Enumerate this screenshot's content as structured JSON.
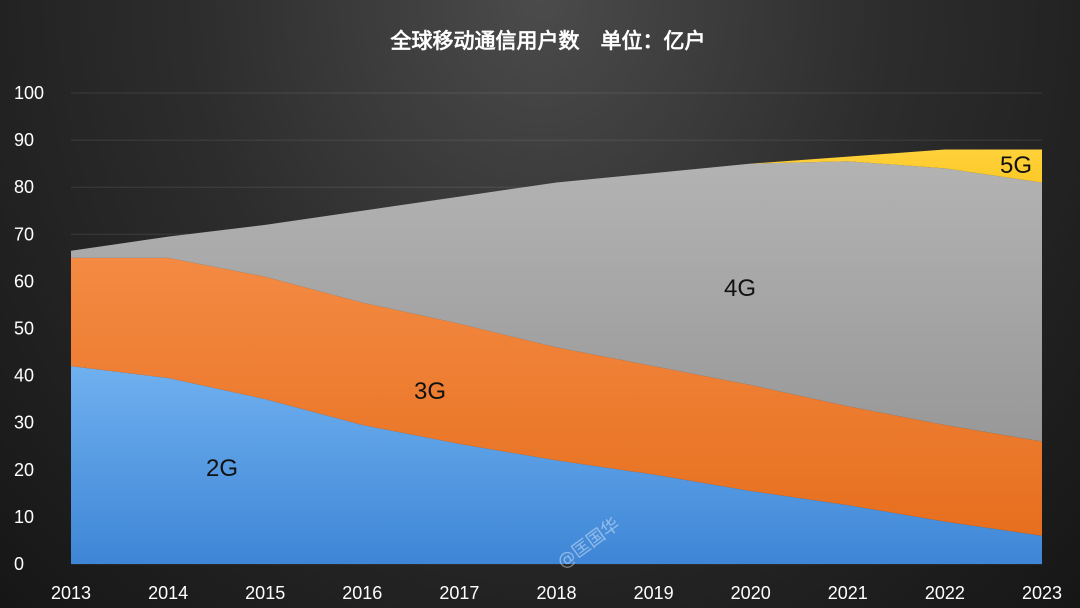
{
  "chart_data": {
    "type": "area",
    "stacked": true,
    "title": "全球移动通信用户数　单位：亿户",
    "xlabel": "",
    "ylabel": "",
    "categories": [
      "2013",
      "2014",
      "2015",
      "2016",
      "2017",
      "2018",
      "2019",
      "2020",
      "2021",
      "2022",
      "2023"
    ],
    "y_ticks": [
      "0",
      "10",
      "20",
      "30",
      "40",
      "50",
      "60",
      "70",
      "80",
      "90",
      "100"
    ],
    "ylim": [
      0,
      100
    ],
    "grid": true,
    "legend": "none",
    "series": [
      {
        "name": "2G",
        "color": "#4a90d9",
        "values": [
          42,
          39.5,
          35,
          29.5,
          25.5,
          22,
          19,
          15.5,
          12.5,
          9,
          6
        ]
      },
      {
        "name": "3G",
        "color": "#ed7d31",
        "values": [
          23,
          25.5,
          26,
          26,
          25.5,
          24,
          23,
          22.5,
          21,
          20.5,
          20
        ]
      },
      {
        "name": "4G",
        "color": "#a5a5a5",
        "values": [
          1.5,
          4.5,
          11,
          19.5,
          27,
          35,
          41,
          47,
          52,
          54.5,
          55
        ]
      },
      {
        "name": "5G",
        "color": "#ffc000",
        "values": [
          0,
          0,
          0,
          0,
          0,
          0,
          0,
          0,
          1,
          4,
          7
        ]
      }
    ],
    "annotations": [
      "2G",
      "3G",
      "4G",
      "5G"
    ]
  },
  "watermark": "@匡国华"
}
